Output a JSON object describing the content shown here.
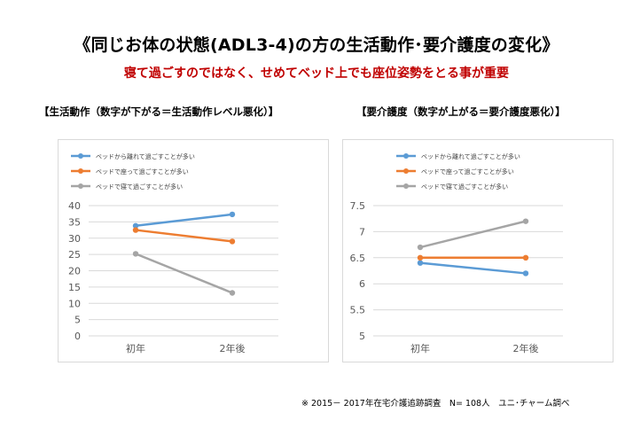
{
  "title": "《同じお体の状態(ADL3-4)の方の生活動作･要介護度の変化》",
  "subtitle": "寝て過ごすのではなく、せめてベッド上でも座位姿勢をとる事が重要",
  "section_titles": {
    "left": "【生活動作（数字が下がる＝生活動作レベル悪化）】",
    "right": "【要介護度（数字が上がる＝要介護度悪化）】"
  },
  "footnote": "※ 2015－ 2017年在宅介護追跡調査　N= 108人　ユニ･チャーム調べ",
  "chart_data": [
    {
      "type": "line",
      "categories": [
        "初年",
        "2年後"
      ],
      "ylim": [
        0,
        40
      ],
      "yticks": [
        "0",
        "5",
        "10",
        "15",
        "20",
        "25",
        "30",
        "35",
        "40"
      ],
      "grid": true,
      "legend": "top-left",
      "series": [
        {
          "name": "ベッドから離れて過ごすことが多い",
          "values": [
            33.8,
            37.3
          ],
          "color": "#5b9bd5"
        },
        {
          "name": "ベッドで座って過ごすことが多い",
          "values": [
            32.5,
            29.0
          ],
          "color": "#ed7d31"
        },
        {
          "name": "ベッドで寝て過ごすことが多い",
          "values": [
            25.2,
            13.2
          ],
          "color": "#a5a5a5"
        }
      ]
    },
    {
      "type": "line",
      "categories": [
        "初年",
        "2年後"
      ],
      "ylim": [
        5,
        7.5
      ],
      "yticks": [
        "5",
        "5.5",
        "6",
        "6.5",
        "7",
        "7.5"
      ],
      "grid": true,
      "legend": "top-left",
      "series": [
        {
          "name": "ベッドから離れて過ごすことが多い",
          "values": [
            6.4,
            6.2
          ],
          "color": "#5b9bd5"
        },
        {
          "name": "ベッドで座って過ごすことが多い",
          "values": [
            6.5,
            6.5
          ],
          "color": "#ed7d31"
        },
        {
          "name": "ベッドで寝て過ごすことが多い",
          "values": [
            6.7,
            7.2
          ],
          "color": "#a5a5a5"
        }
      ]
    }
  ]
}
